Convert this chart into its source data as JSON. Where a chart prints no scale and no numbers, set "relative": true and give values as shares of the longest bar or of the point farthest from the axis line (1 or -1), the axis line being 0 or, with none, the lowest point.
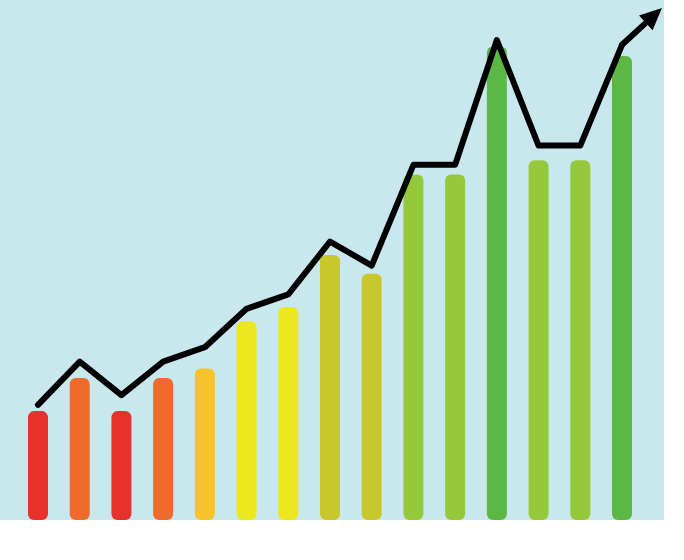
{
  "chart_data": [
    {
      "type": "bar",
      "relative": true,
      "categories": [
        null,
        null,
        null,
        null,
        null,
        null,
        null,
        null,
        null,
        null,
        null,
        null,
        null,
        null,
        null
      ],
      "colors": [
        "#e8302c",
        "#ee6b2c",
        "#e8302c",
        "#ee6b2c",
        "#f8c22a",
        "#ece81f",
        "#ece81f",
        "#c8c82a",
        "#c8c82a",
        "#96c83c",
        "#96c83c",
        "#5cb845",
        "#96c83c",
        "#96c83c",
        "#5cb845"
      ],
      "values": [
        0.23,
        0.3,
        0.23,
        0.3,
        0.32,
        0.42,
        0.45,
        0.56,
        0.52,
        0.73,
        0.73,
        1,
        0.76,
        0.76,
        0.98
      ]
    },
    {
      "type": "line",
      "relative": true,
      "categories": [
        null,
        null,
        null,
        null,
        null,
        null,
        null,
        null,
        null,
        null,
        null,
        null,
        null,
        null,
        null
      ],
      "series": [
        {
          "color": "#000000",
          "values": [
            0.24,
            0.33,
            0.26,
            0.33,
            0.36,
            0.44,
            0.47,
            0.58,
            0.53,
            0.74,
            0.74,
            1,
            0.78,
            0.78,
            0.99
          ]
        }
      ]
    }
  ]
}
